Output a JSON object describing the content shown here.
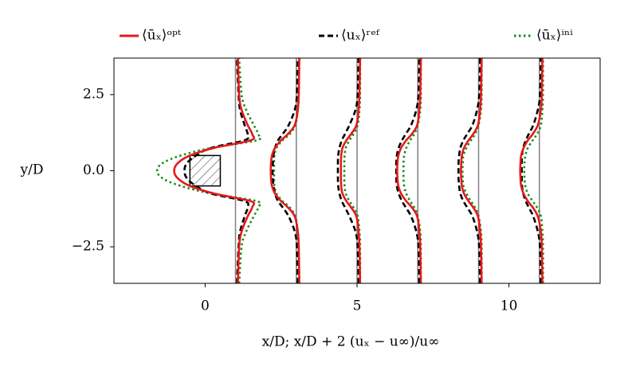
{
  "chart_data": {
    "type": "profile",
    "xlabel": "x/D;  x/D + 2 (uₓ − u∞)/u∞",
    "ylabel": "y/D",
    "xlim": [
      -3,
      13
    ],
    "ylim": [
      -3.7,
      3.7
    ],
    "xticks": [
      0,
      5,
      10
    ],
    "yticks": [
      {
        "value": -2.5,
        "label": "−2.5"
      },
      {
        "value": 0,
        "label": "0.0"
      },
      2.5
    ],
    "stations": [
      1,
      3,
      5,
      7,
      9,
      11
    ],
    "station_color": "#808080",
    "obstacle": {
      "x": [
        -0.5,
        0.5
      ],
      "y": [
        -0.5,
        0.5
      ]
    },
    "legend": "top",
    "y": [
      -3.7,
      -2.5,
      -2,
      -1.5,
      -1.2,
      -1,
      -0.75,
      -0.5,
      -0.25,
      0,
      0.25,
      0.5,
      0.75,
      1,
      1.2,
      1.5,
      2,
      2.5,
      3.7
    ],
    "series": [
      {
        "name": "⟨ūₓ⟩ᵒᵖᵗ",
        "color": "#e41a1c",
        "style": "solid",
        "values": [
          [
            1.08,
            1.12,
            1.2,
            1.4,
            1.55,
            1.5,
            0.3,
            -0.5,
            -0.9,
            -1.02,
            -0.9,
            -0.5,
            0.3,
            1.5,
            1.55,
            1.4,
            1.2,
            1.12,
            1.08
          ],
          [
            3.1,
            3.08,
            3.05,
            2.95,
            2.72,
            2.5,
            2.3,
            2.2,
            2.17,
            2.16,
            2.17,
            2.2,
            2.3,
            2.5,
            2.72,
            2.95,
            3.05,
            3.08,
            3.1
          ],
          [
            5.1,
            5.08,
            5.05,
            4.98,
            4.8,
            4.65,
            4.52,
            4.48,
            4.47,
            4.47,
            4.47,
            4.48,
            4.52,
            4.65,
            4.8,
            4.98,
            5.05,
            5.08,
            5.1
          ],
          [
            7.1,
            7.08,
            7.05,
            6.98,
            6.8,
            6.62,
            6.45,
            6.36,
            6.33,
            6.32,
            6.33,
            6.36,
            6.45,
            6.62,
            6.8,
            6.98,
            7.05,
            7.08,
            7.1
          ],
          [
            9.1,
            9.08,
            9.05,
            8.98,
            8.82,
            8.67,
            8.52,
            8.45,
            8.43,
            8.42,
            8.43,
            8.45,
            8.52,
            8.67,
            8.82,
            8.98,
            9.05,
            9.08,
            9.1
          ],
          [
            11.1,
            11.08,
            11.05,
            10.95,
            10.78,
            10.62,
            10.48,
            10.4,
            10.38,
            10.37,
            10.38,
            10.4,
            10.48,
            10.62,
            10.78,
            10.95,
            11.05,
            11.08,
            11.1
          ]
        ]
      },
      {
        "name": "⟨uₓ⟩ʳᵉᶠ",
        "color": "#000000",
        "style": "dashed",
        "values": [
          [
            1.05,
            1.1,
            1.15,
            1.3,
            1.4,
            1.3,
            0.2,
            -0.3,
            -0.6,
            -0.68,
            -0.6,
            -0.3,
            0.2,
            1.3,
            1.4,
            1.3,
            1.15,
            1.1,
            1.05
          ],
          [
            3.05,
            3.02,
            2.95,
            2.75,
            2.55,
            2.4,
            2.3,
            2.25,
            2.23,
            2.22,
            2.23,
            2.25,
            2.3,
            2.4,
            2.55,
            2.75,
            2.95,
            3.02,
            3.05
          ],
          [
            5.05,
            5.02,
            4.95,
            4.75,
            4.6,
            4.5,
            4.42,
            4.38,
            4.37,
            4.37,
            4.37,
            4.38,
            4.42,
            4.5,
            4.6,
            4.75,
            4.95,
            5.02,
            5.05
          ],
          [
            7.05,
            7.02,
            6.95,
            6.78,
            6.6,
            6.48,
            6.37,
            6.31,
            6.29,
            6.29,
            6.29,
            6.31,
            6.37,
            6.48,
            6.6,
            6.78,
            6.95,
            7.02,
            7.05
          ],
          [
            9.05,
            9.02,
            8.95,
            8.8,
            8.62,
            8.5,
            8.4,
            8.36,
            8.34,
            8.34,
            8.34,
            8.36,
            8.4,
            8.5,
            8.62,
            8.8,
            8.95,
            9.02,
            9.05
          ],
          [
            11.05,
            11.02,
            10.95,
            10.8,
            10.65,
            10.55,
            10.47,
            10.43,
            10.42,
            10.42,
            10.42,
            10.43,
            10.47,
            10.55,
            10.65,
            10.8,
            10.95,
            11.02,
            11.05
          ]
        ]
      },
      {
        "name": "⟨ūₓ⟩ⁱⁿⁱ",
        "color": "#1a8a1a",
        "style": "dotted",
        "values": [
          [
            1.12,
            1.2,
            1.35,
            1.6,
            1.75,
            1.7,
            0.2,
            -0.8,
            -1.4,
            -1.58,
            -1.4,
            -0.8,
            0.2,
            1.7,
            1.75,
            1.6,
            1.35,
            1.2,
            1.12
          ],
          [
            3.1,
            3.08,
            3.05,
            2.97,
            2.78,
            2.55,
            2.35,
            2.28,
            2.27,
            2.27,
            2.27,
            2.28,
            2.35,
            2.55,
            2.78,
            2.97,
            3.05,
            3.08,
            3.1
          ],
          [
            5.1,
            5.1,
            5.08,
            5.02,
            4.88,
            4.75,
            4.63,
            4.59,
            4.58,
            4.58,
            4.58,
            4.59,
            4.63,
            4.75,
            4.88,
            5.02,
            5.08,
            5.1,
            5.1
          ],
          [
            7.1,
            7.1,
            7.08,
            7.0,
            6.88,
            6.75,
            6.62,
            6.55,
            6.53,
            6.53,
            6.53,
            6.55,
            6.62,
            6.75,
            6.88,
            7.0,
            7.08,
            7.1,
            7.1
          ],
          [
            9.1,
            9.1,
            9.08,
            9.0,
            8.88,
            8.75,
            8.6,
            8.5,
            8.48,
            8.47,
            8.48,
            8.5,
            8.6,
            8.75,
            8.88,
            9.0,
            9.08,
            9.1,
            9.1
          ],
          [
            11.12,
            11.12,
            11.1,
            11.05,
            10.92,
            10.78,
            10.62,
            10.54,
            10.51,
            10.5,
            10.51,
            10.54,
            10.62,
            10.78,
            10.92,
            11.05,
            11.1,
            11.12,
            11.12
          ]
        ]
      }
    ]
  }
}
